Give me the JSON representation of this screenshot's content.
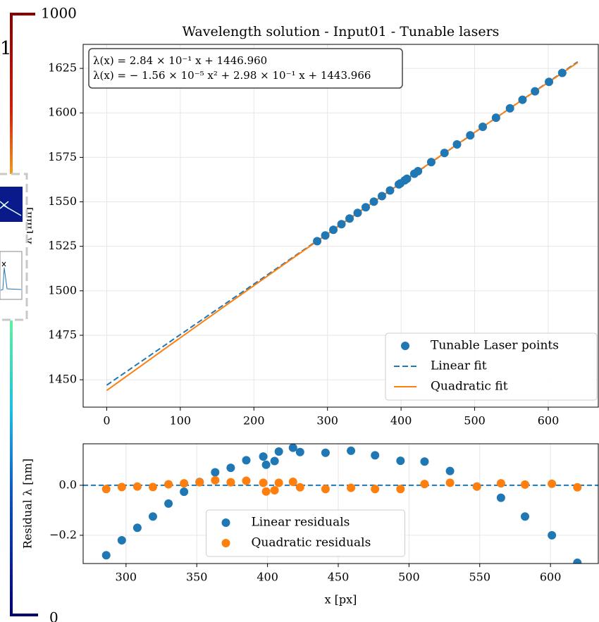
{
  "chart_data": [
    {
      "type": "line",
      "title": "Wavelength solution - Input01 - Tunable lasers",
      "ylabel": "λ [nm]",
      "xlim": [
        -32,
        668
      ],
      "ylim": [
        1434.6,
        1638.5
      ],
      "xticks": [
        0,
        100,
        200,
        300,
        400,
        500,
        600
      ],
      "yticks": [
        1450,
        1475,
        1500,
        1525,
        1550,
        1575,
        1600,
        1625
      ],
      "grid": true,
      "legend": "lower right",
      "annotation": [
        "λ(x) = 2.84 × 10⁻¹ x + 1446.960",
        "λ(x) = − 1.56 × 10⁻⁵ x² + 2.98 × 10⁻¹ x + 1443.966"
      ],
      "series": [
        {
          "name": "Tunable Laser points",
          "color": "#1f77b4",
          "style": "markers",
          "x": [
            286,
            297,
            308,
            319,
            330,
            341,
            352,
            363,
            374,
            385,
            397,
            399,
            405,
            408,
            418,
            423,
            441,
            459,
            476,
            494,
            511,
            529,
            548,
            565,
            582,
            601,
            619
          ],
          "values": [
            1527.9,
            1531.09,
            1534.26,
            1537.43,
            1540.61,
            1543.77,
            1546.94,
            1550.1,
            1553.25,
            1556.4,
            1559.83,
            1560.36,
            1562.08,
            1562.97,
            1565.82,
            1567.22,
            1572.33,
            1577.46,
            1582.26,
            1587.36,
            1592.18,
            1597.26,
            1602.59,
            1607.37,
            1612.13,
            1617.44,
            1622.45
          ]
        },
        {
          "name": "Linear fit",
          "color": "#1f77b4",
          "style": "dashed",
          "x": [
            0,
            640
          ],
          "values": [
            1446.96,
            1628.72
          ]
        },
        {
          "name": "Quadratic fit",
          "color": "#ff7f0e",
          "style": "solid",
          "x": [
            0,
            80,
            160,
            240,
            320,
            400,
            480,
            560,
            640
          ],
          "values": [
            1443.966,
            1467.71,
            1491.25,
            1514.59,
            1537.73,
            1560.67,
            1583.41,
            1605.95,
            1628.3
          ]
        }
      ]
    },
    {
      "type": "scatter",
      "xlabel": "x [px]",
      "ylabel": "Residual λ [nm]",
      "xlim": [
        269.7,
        633.8
      ],
      "ylim": [
        -0.313,
        0.166
      ],
      "xticks": [
        300,
        350,
        400,
        450,
        500,
        550,
        600
      ],
      "yticks": [
        {
          "value": 0,
          "label": "0.0"
        },
        {
          "value": -0.2,
          "label": "−0.2"
        }
      ],
      "grid": true,
      "legend": "lower center",
      "hline": {
        "value": 0,
        "color": "#1f77b4"
      },
      "series": [
        {
          "name": "Linear residuals",
          "color": "#1f77b4",
          "style": "markers",
          "x": [
            286,
            297,
            308,
            319,
            330,
            341,
            352,
            363,
            374,
            385,
            397,
            399,
            405,
            408,
            418,
            423,
            441,
            459,
            476,
            494,
            511,
            529,
            548,
            565,
            582,
            601,
            619
          ],
          "values": [
            -0.28,
            -0.22,
            -0.17,
            -0.125,
            -0.073,
            -0.026,
            0.013,
            0.052,
            0.07,
            0.1,
            0.115,
            0.082,
            0.097,
            0.135,
            0.15,
            0.133,
            0.13,
            0.138,
            0.12,
            0.098,
            0.095,
            0.057,
            -0.005,
            -0.05,
            -0.125,
            -0.2,
            -0.31
          ]
        },
        {
          "name": "Quadratic residuals",
          "color": "#ff7f0e",
          "style": "markers",
          "x": [
            286,
            297,
            308,
            319,
            330,
            341,
            352,
            363,
            374,
            385,
            397,
            399,
            405,
            408,
            418,
            423,
            441,
            459,
            476,
            494,
            511,
            529,
            548,
            565,
            582,
            601,
            619
          ],
          "values": [
            -0.015,
            -0.007,
            -0.005,
            -0.007,
            0.004,
            0.008,
            0.012,
            0.02,
            0.012,
            0.018,
            0.01,
            -0.025,
            -0.02,
            0.01,
            0.014,
            -0.008,
            -0.015,
            -0.01,
            -0.015,
            -0.015,
            0.005,
            0.01,
            -0.005,
            0.008,
            0.003,
            0.006,
            -0.008
          ]
        }
      ]
    }
  ],
  "overlay": {
    "colorbar_max": "1000",
    "colorbar_min": "0",
    "fragment": "1"
  }
}
